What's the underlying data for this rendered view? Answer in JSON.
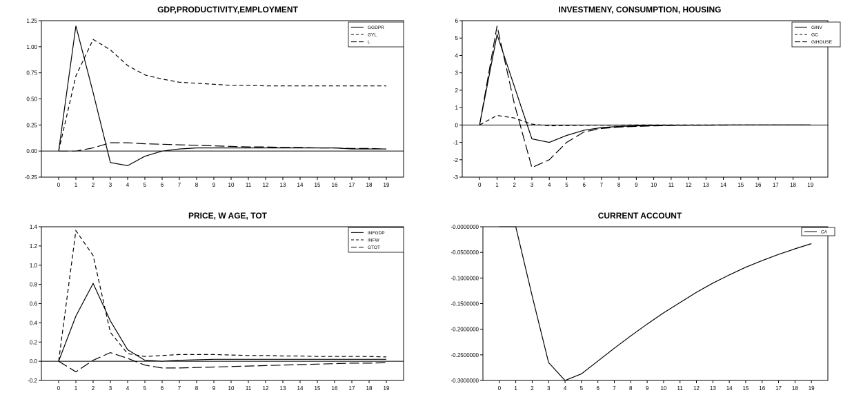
{
  "chart_data": [
    {
      "type": "line",
      "title": "GDP,PRODUCTIVITY,EMPLOYMENT",
      "x": [
        "0",
        "1",
        "2",
        "3",
        "4",
        "5",
        "6",
        "7",
        "8",
        "9",
        "10",
        "11",
        "12",
        "13",
        "14",
        "15",
        "16",
        "17",
        "18",
        "19"
      ],
      "ylim": [
        -0.25,
        1.25
      ],
      "yticks": [
        "1.25",
        "1.00",
        "0.75",
        "0.50",
        "0.25",
        "0.00",
        "-0.25"
      ],
      "ytick_values": [
        1.25,
        1.0,
        0.75,
        0.5,
        0.25,
        0.0,
        -0.25
      ],
      "legend": "top-right",
      "series": [
        {
          "name": "GGDPR",
          "style": "solid",
          "values": [
            0,
            1.2,
            0.56,
            -0.11,
            -0.14,
            -0.05,
            0.0,
            0.02,
            0.03,
            0.03,
            0.03,
            0.03,
            0.03,
            0.03,
            0.03,
            0.03,
            0.03,
            0.02,
            0.02,
            0.02
          ]
        },
        {
          "name": "GYL",
          "style": "short-dash",
          "values": [
            0,
            0.72,
            1.07,
            0.97,
            0.82,
            0.73,
            0.69,
            0.66,
            0.65,
            0.64,
            0.63,
            0.63,
            0.625,
            0.625,
            0.625,
            0.625,
            0.625,
            0.625,
            0.625,
            0.625
          ]
        },
        {
          "name": "L",
          "style": "long-dash",
          "values": [
            0,
            0.0,
            0.03,
            0.08,
            0.08,
            0.07,
            0.065,
            0.06,
            0.055,
            0.05,
            0.045,
            0.04,
            0.04,
            0.035,
            0.035,
            0.03,
            0.03,
            0.025,
            0.025,
            0.02
          ]
        }
      ]
    },
    {
      "type": "line",
      "title": "INVESTMENY, CONSUMPTION, HOUSING",
      "x": [
        "0",
        "1",
        "2",
        "3",
        "4",
        "5",
        "6",
        "7",
        "8",
        "9",
        "10",
        "11",
        "12",
        "13",
        "14",
        "15",
        "16",
        "17",
        "18",
        "19"
      ],
      "ylim": [
        -3,
        6
      ],
      "yticks": [
        "6",
        "5",
        "4",
        "3",
        "2",
        "1",
        "0",
        "-1",
        "-2",
        "-3"
      ],
      "ytick_values": [
        6,
        5,
        4,
        3,
        2,
        1,
        0,
        -1,
        -2,
        -3
      ],
      "legend": "top-right",
      "series": [
        {
          "name": "GINV",
          "style": "solid",
          "values": [
            0,
            5.2,
            2.2,
            -0.8,
            -1.0,
            -0.6,
            -0.3,
            -0.15,
            -0.08,
            -0.05,
            -0.03,
            -0.02,
            -0.01,
            -0.01,
            0,
            0,
            0,
            0,
            0,
            0
          ]
        },
        {
          "name": "GC",
          "style": "short-dash",
          "values": [
            0,
            0.55,
            0.4,
            0.05,
            -0.05,
            -0.03,
            -0.02,
            -0.01,
            -0.01,
            0,
            0,
            0,
            0,
            0,
            0,
            0,
            0,
            0,
            0,
            0
          ]
        },
        {
          "name": "GIHOUSE",
          "style": "long-dash",
          "values": [
            0,
            5.7,
            1.2,
            -2.45,
            -2.0,
            -1.0,
            -0.4,
            -0.2,
            -0.12,
            -0.08,
            -0.05,
            -0.03,
            -0.02,
            -0.01,
            -0.01,
            0,
            0,
            0,
            0,
            0
          ]
        }
      ]
    },
    {
      "type": "line",
      "title": "PRICE, W AGE, TOT",
      "x": [
        "0",
        "1",
        "2",
        "3",
        "4",
        "5",
        "6",
        "7",
        "8",
        "9",
        "10",
        "11",
        "12",
        "13",
        "14",
        "15",
        "16",
        "17",
        "18",
        "19"
      ],
      "ylim": [
        -0.2,
        1.4
      ],
      "yticks": [
        "1.4",
        "1.2",
        "1.0",
        "0.8",
        "0.6",
        "0.4",
        "0.2",
        "0.0",
        "-0.2"
      ],
      "ytick_values": [
        1.4,
        1.2,
        1.0,
        0.8,
        0.6,
        0.4,
        0.2,
        0.0,
        -0.2
      ],
      "legend": "top-right",
      "series": [
        {
          "name": "INFGDP",
          "style": "solid",
          "values": [
            0,
            0.47,
            0.81,
            0.42,
            0.12,
            0.01,
            0.0,
            0.01,
            0.015,
            0.02,
            0.02,
            0.02,
            0.02,
            0.02,
            0.02,
            0.02,
            0.02,
            0.02,
            0.02,
            0.02
          ]
        },
        {
          "name": "INFW",
          "style": "short-dash",
          "values": [
            0,
            1.36,
            1.1,
            0.3,
            0.08,
            0.05,
            0.06,
            0.07,
            0.07,
            0.07,
            0.065,
            0.06,
            0.06,
            0.055,
            0.055,
            0.05,
            0.05,
            0.05,
            0.05,
            0.045
          ]
        },
        {
          "name": "GTOT",
          "style": "long-dash",
          "values": [
            0,
            -0.11,
            0.01,
            0.09,
            0.03,
            -0.04,
            -0.07,
            -0.07,
            -0.065,
            -0.06,
            -0.055,
            -0.05,
            -0.045,
            -0.04,
            -0.035,
            -0.03,
            -0.025,
            -0.02,
            -0.02,
            -0.015
          ]
        }
      ]
    },
    {
      "type": "line",
      "title": "CURRENT ACCOUNT",
      "x": [
        "0",
        "1",
        "2",
        "3",
        "4",
        "5",
        "6",
        "7",
        "8",
        "9",
        "10",
        "11",
        "12",
        "13",
        "14",
        "15",
        "16",
        "17",
        "18",
        "19"
      ],
      "ylim": [
        -0.3,
        0.0
      ],
      "yticks": [
        "-0.0000000",
        "-0.0500000",
        "-0.1000000",
        "-0.1500000",
        "-0.2000000",
        "-0.2500000",
        "-0.3000000"
      ],
      "ytick_values": [
        0,
        -0.05,
        -0.1,
        -0.15,
        -0.2,
        -0.25,
        -0.3
      ],
      "legend": "top-right",
      "series": [
        {
          "name": "CA",
          "style": "solid",
          "values": [
            0,
            0,
            -0.135,
            -0.265,
            -0.3,
            -0.287,
            -0.262,
            -0.237,
            -0.213,
            -0.19,
            -0.168,
            -0.148,
            -0.128,
            -0.11,
            -0.094,
            -0.079,
            -0.066,
            -0.054,
            -0.043,
            -0.033
          ]
        }
      ]
    }
  ]
}
